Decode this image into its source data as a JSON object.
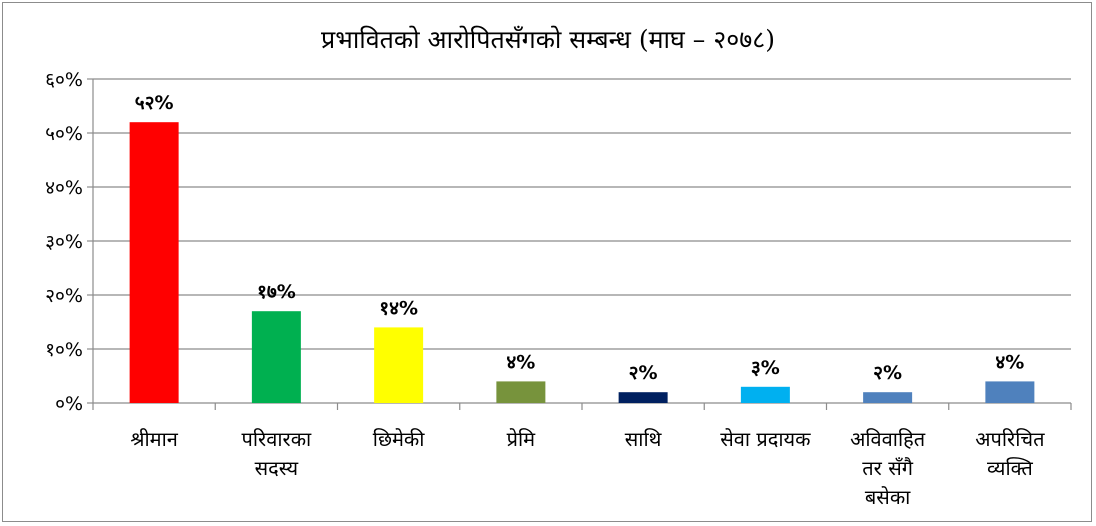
{
  "chart_data": {
    "type": "bar",
    "title": "प्रभावितको आरोपितसँगको सम्बन्ध (माघ – २०७८)",
    "xlabel": "",
    "ylabel": "",
    "ylim": [
      0,
      60
    ],
    "yticks": [
      "०%",
      "१०%",
      "२०%",
      "३०%",
      "४०%",
      "५०%",
      "६०%"
    ],
    "grid": true,
    "legend": "none",
    "categories": [
      [
        "श्रीमान"
      ],
      [
        "परिवारका",
        "सदस्य"
      ],
      [
        "छिमेकी"
      ],
      [
        "प्रेमि"
      ],
      [
        "साथि"
      ],
      [
        "सेवा प्रदायक"
      ],
      [
        "अविवाहित",
        "तर सँगै",
        "बसेका"
      ],
      [
        "अपरिचित",
        "व्यक्ति"
      ]
    ],
    "values": [
      52,
      17,
      14,
      4,
      2,
      3,
      2,
      4
    ],
    "data_labels": [
      "५२%",
      "१७%",
      "१४%",
      "४%",
      "२%",
      "३%",
      "२%",
      "४%"
    ],
    "colors": [
      "#ff0000",
      "#00b050",
      "#ffff00",
      "#77933c",
      "#002060",
      "#00b0f0",
      "#4f81bd",
      "#4f81bd"
    ]
  }
}
